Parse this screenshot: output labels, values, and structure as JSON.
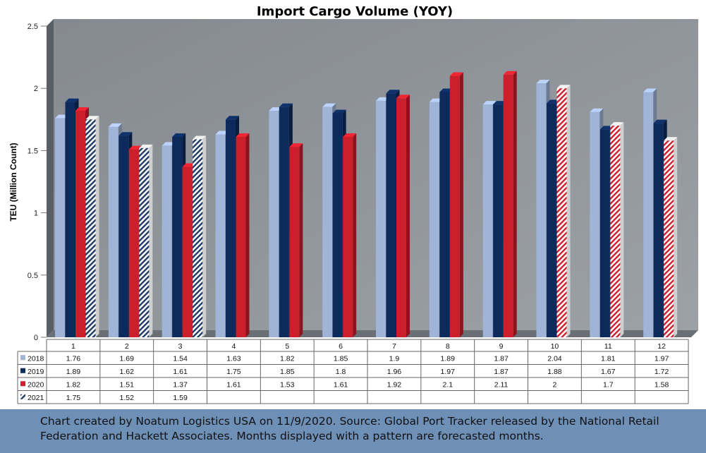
{
  "chart_data": {
    "type": "bar",
    "title": "Import Cargo Volume (YOY)",
    "ylabel": "TEU (Million Count)",
    "xlabel": "",
    "ylim": [
      0,
      2.5
    ],
    "yticks": [
      "0",
      "0.5",
      "1",
      "1.5",
      "2",
      "2.5"
    ],
    "categories": [
      "1",
      "2",
      "3",
      "4",
      "5",
      "6",
      "7",
      "8",
      "9",
      "10",
      "11",
      "12"
    ],
    "series": [
      {
        "name": "2018",
        "color": "#9fb4d6",
        "values": [
          1.76,
          1.69,
          1.54,
          1.63,
          1.82,
          1.85,
          1.9,
          1.89,
          1.87,
          2.04,
          1.81,
          1.97
        ]
      },
      {
        "name": "2019",
        "color": "#0d2a5c",
        "values": [
          1.89,
          1.62,
          1.61,
          1.75,
          1.85,
          1.8,
          1.96,
          1.97,
          1.87,
          1.88,
          1.67,
          1.72
        ]
      },
      {
        "name": "2020",
        "color": "#cc1f2c",
        "values": [
          1.82,
          1.51,
          1.37,
          1.61,
          1.53,
          1.61,
          1.92,
          2.1,
          2.11,
          2,
          1.7,
          1.58
        ]
      },
      {
        "name": "2021",
        "color": "#1d3a66",
        "values": [
          1.75,
          1.52,
          1.59,
          null,
          null,
          null,
          null,
          null,
          null,
          null,
          null,
          null
        ]
      }
    ],
    "table_values": [
      [
        "1.76",
        "1.69",
        "1.54",
        "1.63",
        "1.82",
        "1.85",
        "1.9",
        "1.89",
        "1.87",
        "2.04",
        "1.81",
        "1.97"
      ],
      [
        "1.89",
        "1.62",
        "1.61",
        "1.75",
        "1.85",
        "1.8",
        "1.96",
        "1.97",
        "1.87",
        "1.88",
        "1.67",
        "1.72"
      ],
      [
        "1.82",
        "1.51",
        "1.37",
        "1.61",
        "1.53",
        "1.61",
        "1.92",
        "2.1",
        "2.11",
        "2",
        "1.7",
        "1.58"
      ],
      [
        "1.75",
        "1.52",
        "1.59",
        "",
        "",
        "",
        "",
        "",
        "",
        "",
        "",
        ""
      ]
    ],
    "forecast_months": {
      "2020": [
        "10",
        "11",
        "12"
      ],
      "2021": [
        "1",
        "2",
        "3"
      ]
    },
    "wall_color": "#8a9096",
    "grid": false,
    "legend": "data-table"
  },
  "footer": {
    "line1": "Chart created by Noatum Logistics USA on 11/9/2020. Source: Global Port Tracker released by the National Retail",
    "line2": "Federation and Hackett Associates. Months displayed with a pattern are forecasted months."
  },
  "colors": {
    "footer_bg": "#6e8fb6"
  }
}
